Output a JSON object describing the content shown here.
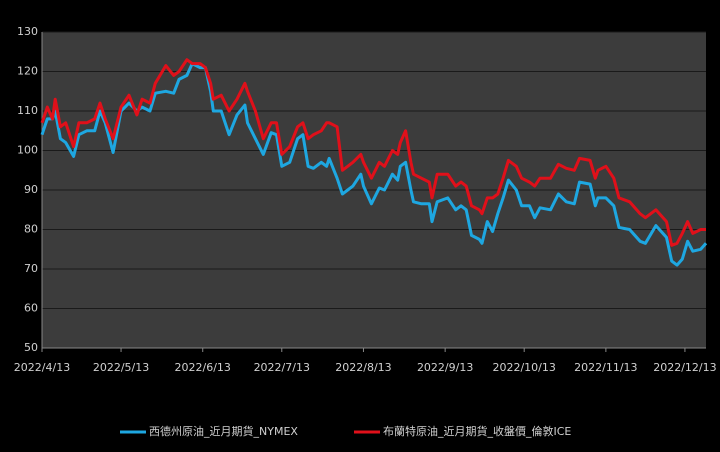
{
  "chart_data": {
    "type": "line",
    "x": [
      "2022/4/13",
      "2022/4/15",
      "2022/4/17",
      "2022/4/18",
      "2022/4/20",
      "2022/4/22",
      "2022/4/25",
      "2022/4/27",
      "2022/4/30",
      "2022/5/3",
      "2022/5/5",
      "2022/5/7",
      "2022/5/10",
      "2022/5/13",
      "2022/5/16",
      "2022/5/19",
      "2022/5/21",
      "2022/5/24",
      "2022/5/26",
      "2022/5/30",
      "2022/6/2",
      "2022/6/4",
      "2022/6/7",
      "2022/6/9",
      "2022/6/12",
      "2022/6/14",
      "2022/6/16",
      "2022/6/17",
      "2022/6/20",
      "2022/6/23",
      "2022/6/26",
      "2022/6/29",
      "2022/6/30",
      "2022/7/3",
      "2022/7/6",
      "2022/7/9",
      "2022/7/11",
      "2022/7/13",
      "2022/7/16",
      "2022/7/19",
      "2022/7/21",
      "2022/7/23",
      "2022/7/25",
      "2022/7/28",
      "2022/7/30",
      "2022/7/31",
      "2022/8/3",
      "2022/8/5",
      "2022/8/7",
      "2022/8/9",
      "2022/8/12",
      "2022/8/13",
      "2022/8/16",
      "2022/8/19",
      "2022/8/21",
      "2022/8/24",
      "2022/8/26",
      "2022/8/27",
      "2022/8/29",
      "2022/8/31",
      "2022/9/1",
      "2022/9/4",
      "2022/9/7",
      "2022/9/8",
      "2022/9/10",
      "2022/9/14",
      "2022/9/17",
      "2022/9/19",
      "2022/9/21",
      "2022/9/23",
      "2022/9/26",
      "2022/9/27",
      "2022/9/29",
      "2022/10/1",
      "2022/10/3",
      "2022/10/5",
      "2022/10/7",
      "2022/10/10",
      "2022/10/12",
      "2022/10/15",
      "2022/10/17",
      "2022/10/19",
      "2022/10/23",
      "2022/10/26",
      "2022/10/29",
      "2022/11/1",
      "2022/11/3",
      "2022/11/7",
      "2022/11/9",
      "2022/11/10",
      "2022/11/13",
      "2022/11/16",
      "2022/11/18",
      "2022/11/22",
      "2022/11/26",
      "2022/11/28",
      "2022/12/2",
      "2022/12/6",
      "2022/12/8",
      "2022/12/10",
      "2022/12/12",
      "2022/12/14",
      "2022/12/16",
      "2022/12/19",
      "2022/12/21"
    ],
    "series": [
      {
        "name": "西德州原油_近月期貨_NYMEX",
        "color": "#1ea7e1",
        "values": [
          104,
          108,
          108,
          110,
          103,
          102,
          98.5,
          104,
          105,
          105,
          110,
          107,
          99.5,
          110,
          112,
          110,
          111,
          110,
          114.5,
          115,
          114.5,
          118,
          119,
          122,
          121,
          121,
          115,
          110,
          110,
          104,
          109,
          111.5,
          107,
          103,
          99,
          104.5,
          104,
          96,
          97,
          103,
          104,
          96,
          95.5,
          97,
          96,
          98,
          93,
          89,
          90,
          91,
          94,
          91,
          86.5,
          90.5,
          90,
          94,
          92.5,
          96,
          97,
          90,
          87,
          86.5,
          86.5,
          82,
          87,
          88,
          85,
          86,
          85,
          78.5,
          77.5,
          76.5,
          82,
          79.5,
          84,
          88,
          92.5,
          90,
          86,
          86,
          83,
          85.5,
          85,
          89,
          87,
          86.5,
          92,
          91.5,
          86,
          88,
          88,
          86,
          80.5,
          80,
          77,
          76.5,
          81,
          78,
          72,
          71,
          72.5,
          77,
          74.5,
          75,
          76.5
        ]
      },
      {
        "name": "布蘭特原油_近月期貨_收盤價_倫敦ICE",
        "color": "#e0101a",
        "values": [
          107,
          111,
          108,
          113,
          106,
          107,
          101,
          107,
          107,
          108,
          112,
          108,
          103,
          111,
          114,
          109,
          113,
          112,
          117,
          121.5,
          119,
          120,
          123,
          122,
          122,
          121,
          117,
          113,
          114,
          110,
          113,
          117,
          115,
          110,
          103,
          107,
          107,
          99,
          101,
          106,
          107,
          103,
          104,
          105,
          107,
          107,
          106,
          95,
          96,
          97,
          99,
          97,
          93,
          97,
          96,
          100,
          99,
          102,
          105,
          97,
          94,
          93,
          92,
          88,
          94,
          94,
          91,
          92,
          91,
          86,
          85,
          84,
          88,
          88,
          89,
          93,
          97.5,
          96,
          93,
          92,
          91,
          93,
          93,
          96.5,
          95.5,
          95,
          98,
          97.5,
          93,
          95,
          96,
          93,
          88,
          87,
          84,
          83,
          85,
          82,
          76,
          76.5,
          79,
          82,
          79,
          80,
          80
        ]
      }
    ],
    "xlim": [
      "2022/4/13",
      "2022/12/21"
    ],
    "xticks": [
      "2022/4/13",
      "2022/5/13",
      "2022/6/13",
      "2022/7/13",
      "2022/8/13",
      "2022/9/13",
      "2022/10/13",
      "2022/11/13",
      "2022/12/13"
    ],
    "ylim": [
      50,
      130
    ],
    "yticks": [
      50,
      60,
      70,
      80,
      90,
      100,
      110,
      120,
      130
    ],
    "grid": true,
    "legend": "bottom"
  }
}
